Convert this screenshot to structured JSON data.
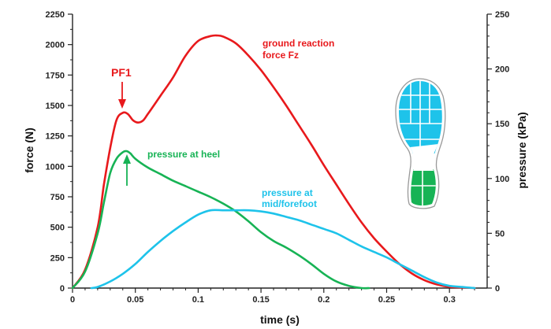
{
  "chart_data": {
    "type": "line",
    "xlabel": "time (s)",
    "ylabel_left": "force (N)",
    "ylabel_right": "pressure (kPa)",
    "xlim": [
      0,
      0.33
    ],
    "ylim_left": [
      0,
      2250
    ],
    "ylim_right": [
      0,
      250
    ],
    "x_ticks": [
      "0",
      "0.05",
      "0.1",
      "0.15",
      "0.2",
      "0.25",
      "0.3"
    ],
    "x_tick_values": [
      0,
      0.05,
      0.1,
      0.15,
      0.2,
      0.25,
      0.3
    ],
    "y_left_ticks": [
      "0",
      "250",
      "500",
      "750",
      "1000",
      "1250",
      "1500",
      "1750",
      "2000",
      "2250"
    ],
    "y_left_tick_values": [
      0,
      250,
      500,
      750,
      1000,
      1250,
      1500,
      1750,
      2000,
      2250
    ],
    "y_right_ticks": [
      "0",
      "50",
      "100",
      "150",
      "200",
      "250"
    ],
    "y_right_tick_values": [
      0,
      50,
      100,
      150,
      200,
      250
    ],
    "grid": false,
    "series": [
      {
        "key": "grf",
        "axis": "left",
        "color": "#e8191c",
        "x": [
          0,
          0.01,
          0.02,
          0.025,
          0.03,
          0.035,
          0.04,
          0.044,
          0.048,
          0.052,
          0.056,
          0.06,
          0.07,
          0.08,
          0.09,
          0.1,
          0.11,
          0.115,
          0.12,
          0.13,
          0.14,
          0.15,
          0.16,
          0.17,
          0.18,
          0.19,
          0.2,
          0.21,
          0.22,
          0.23,
          0.24,
          0.25,
          0.26,
          0.27,
          0.28,
          0.29,
          0.3,
          0.31,
          0.32
        ],
        "y": [
          0,
          150,
          500,
          850,
          1150,
          1380,
          1440,
          1430,
          1380,
          1360,
          1375,
          1430,
          1580,
          1730,
          1910,
          2030,
          2070,
          2075,
          2065,
          2010,
          1910,
          1790,
          1650,
          1500,
          1340,
          1180,
          1010,
          850,
          690,
          540,
          410,
          300,
          200,
          120,
          65,
          30,
          10,
          5,
          0
        ]
      },
      {
        "key": "heel",
        "axis": "right",
        "color": "#17b355",
        "x": [
          0,
          0.01,
          0.02,
          0.025,
          0.03,
          0.035,
          0.04,
          0.043,
          0.046,
          0.05,
          0.06,
          0.07,
          0.08,
          0.09,
          0.1,
          0.11,
          0.12,
          0.13,
          0.14,
          0.15,
          0.16,
          0.17,
          0.18,
          0.19,
          0.2,
          0.21,
          0.22,
          0.23,
          0.236
        ],
        "y": [
          0,
          15,
          50,
          78,
          105,
          118,
          124,
          125,
          123,
          118,
          110,
          104,
          98,
          93,
          88,
          83,
          77,
          70,
          61,
          51,
          43,
          37,
          30,
          22,
          13,
          6,
          2,
          0,
          0
        ]
      },
      {
        "key": "midforefoot",
        "axis": "right",
        "color": "#1ec3ea",
        "x": [
          0.015,
          0.02,
          0.03,
          0.04,
          0.05,
          0.06,
          0.07,
          0.08,
          0.09,
          0.1,
          0.11,
          0.12,
          0.13,
          0.14,
          0.15,
          0.16,
          0.17,
          0.18,
          0.19,
          0.2,
          0.21,
          0.22,
          0.23,
          0.24,
          0.25,
          0.26,
          0.27,
          0.28,
          0.29,
          0.3,
          0.31,
          0.32
        ],
        "y": [
          0,
          1,
          6,
          13,
          22,
          33,
          43,
          52,
          60,
          67,
          71,
          71,
          71,
          71,
          70,
          68,
          65,
          62,
          58,
          54,
          50,
          44,
          38,
          33,
          28,
          22,
          16,
          10,
          5,
          2,
          1,
          0
        ]
      }
    ],
    "annotations": {
      "grf": "ground reaction\nforce Fz",
      "pf1": "PF1",
      "heel": "pressure at heel",
      "midforefoot": "pressure at\nmid/forefoot"
    }
  },
  "colors": {
    "red": "#e8191c",
    "green": "#17b355",
    "cyan": "#1ec3ea",
    "cyan_fill": "#1ec3ea",
    "green_fill": "#17b355"
  },
  "icons": {
    "insole": "foot-insole-pressure-map-icon"
  }
}
